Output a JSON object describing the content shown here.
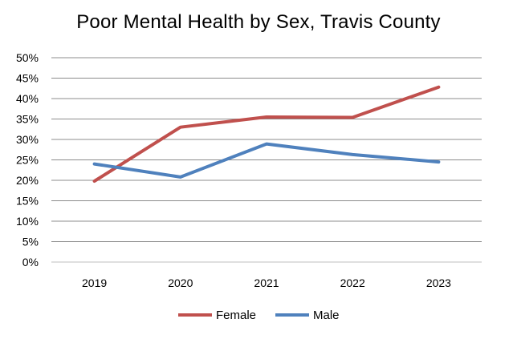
{
  "chart_data": {
    "type": "line",
    "title": "Poor Mental Health by Sex, Travis County",
    "xlabel": "",
    "ylabel": "",
    "categories": [
      "2019",
      "2020",
      "2021",
      "2022",
      "2023"
    ],
    "series": [
      {
        "name": "Female",
        "values": [
          19.8,
          33.0,
          35.5,
          35.4,
          42.8
        ],
        "color": "#C0504D"
      },
      {
        "name": "Male",
        "values": [
          24.0,
          20.8,
          28.9,
          26.3,
          24.5
        ],
        "color": "#4F81BD"
      }
    ],
    "ylim": [
      0,
      50
    ],
    "y_ticks": [
      "0%",
      "5%",
      "10%",
      "15%",
      "20%",
      "25%",
      "30%",
      "35%",
      "40%",
      "45%",
      "50%"
    ],
    "grid": true,
    "legend_position": "bottom"
  }
}
